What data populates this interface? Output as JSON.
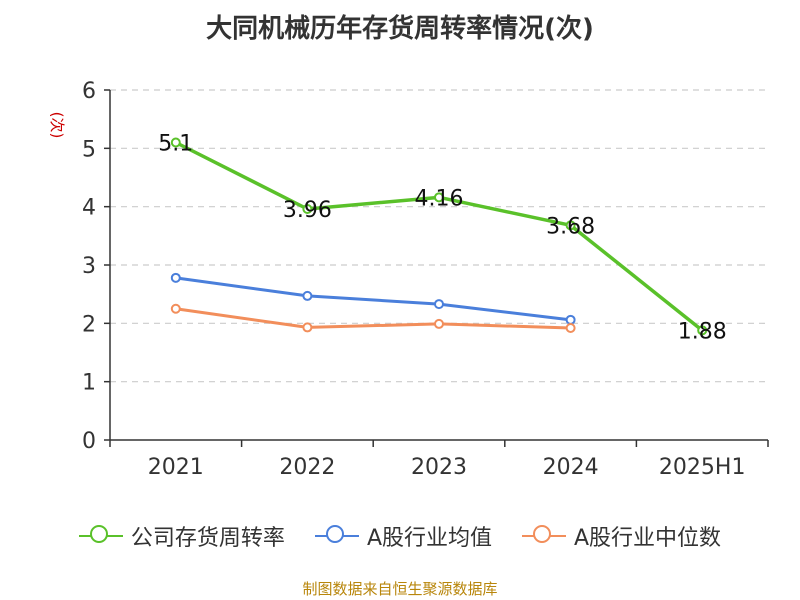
{
  "chart_data": {
    "type": "line",
    "title": "大同机械历年存货周转率情况(次)",
    "ylabel": "(次)",
    "xlabel": "",
    "categories": [
      "2021",
      "2022",
      "2023",
      "2024",
      "2025H1"
    ],
    "ylim": [
      0,
      6
    ],
    "yticks": [
      "0",
      "1",
      "2",
      "3",
      "4",
      "5",
      "6"
    ],
    "grid": true,
    "legend_position": "bottom",
    "series": [
      {
        "name": "公司存货周转率",
        "color": "#5ac12a",
        "values": [
          5.1,
          3.96,
          4.16,
          3.68,
          1.88
        ],
        "labels": [
          "5.1",
          "3.96",
          "4.16",
          "3.68",
          "1.88"
        ]
      },
      {
        "name": "A股行业均值",
        "color": "#4a7fdb",
        "values": [
          2.78,
          2.47,
          2.33,
          2.06,
          null
        ]
      },
      {
        "name": "A股行业中位数",
        "color": "#f28e5b",
        "values": [
          2.25,
          1.93,
          1.99,
          1.92,
          null
        ]
      }
    ]
  },
  "source": "制图数据来自恒生聚源数据库"
}
